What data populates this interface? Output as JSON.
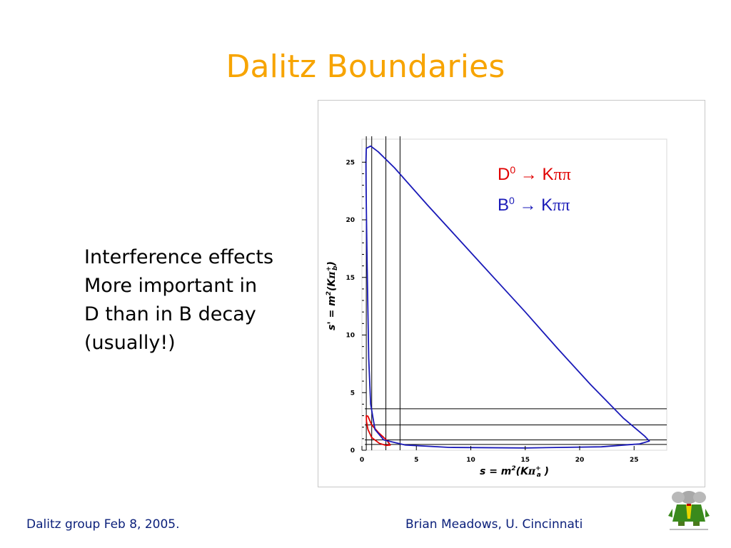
{
  "slide": {
    "title": "Dalitz Boundaries",
    "body_lines": [
      "Interference effects",
      "More important in",
      "D than in B decay",
      "(usually!)"
    ],
    "footer_left": "Dalitz group Feb 8, 2005.",
    "footer_right": "Brian Meadows, U. Cincinnati",
    "title_color": "#f7a400",
    "footer_color": "#0a1f7a"
  },
  "chart_data": {
    "type": "line",
    "xlabel": "s = m2(Kπa+)",
    "ylabel": "s' = m2(Kπb+)",
    "xlim": [
      0,
      28
    ],
    "ylim": [
      0,
      27
    ],
    "x_ticks": [
      "0",
      "5",
      "10",
      "15",
      "20",
      "25"
    ],
    "y_ticks": [
      "0",
      "5",
      "10",
      "15",
      "20",
      "25"
    ],
    "legend": [
      {
        "label": "D0 → Kππ",
        "color": "#e00000"
      },
      {
        "label": "B0 → Kππ",
        "color": "#1a1ab8"
      }
    ],
    "legend_placement": "top-right",
    "series": [
      {
        "name": "D0 → Kππ",
        "color": "#e00000",
        "closed": true,
        "points": [
          [
            0.4,
            3.0
          ],
          [
            0.55,
            2.95
          ],
          [
            0.9,
            2.2
          ],
          [
            1.5,
            1.55
          ],
          [
            2.3,
            0.85
          ],
          [
            2.6,
            0.45
          ],
          [
            2.2,
            0.42
          ],
          [
            1.6,
            0.6
          ],
          [
            0.9,
            1.1
          ],
          [
            0.55,
            1.8
          ],
          [
            0.42,
            2.5
          ]
        ]
      },
      {
        "name": "B0 → Kππ",
        "color": "#1a1ab8",
        "closed": true,
        "points": [
          [
            0.4,
            26.2
          ],
          [
            0.8,
            26.4
          ],
          [
            1.5,
            25.9
          ],
          [
            3.0,
            24.5
          ],
          [
            6.0,
            21.3
          ],
          [
            9.0,
            18.2
          ],
          [
            12.0,
            15.1
          ],
          [
            15.0,
            12.0
          ],
          [
            18.0,
            8.8
          ],
          [
            21.0,
            5.7
          ],
          [
            24.0,
            2.8
          ],
          [
            26.0,
            1.2
          ],
          [
            26.4,
            0.8
          ],
          [
            25.5,
            0.55
          ],
          [
            22.0,
            0.3
          ],
          [
            15.0,
            0.2
          ],
          [
            8.0,
            0.25
          ],
          [
            4.0,
            0.45
          ],
          [
            2.0,
            0.9
          ],
          [
            1.2,
            1.8
          ],
          [
            0.8,
            4.0
          ],
          [
            0.62,
            8.0
          ],
          [
            0.55,
            12.0
          ],
          [
            0.48,
            16.0
          ],
          [
            0.42,
            20.0
          ],
          [
            0.38,
            23.0
          ],
          [
            0.37,
            25.0
          ]
        ]
      }
    ],
    "vertical_lines": [
      0.4,
      0.9,
      2.2,
      3.5
    ],
    "horizontal_lines": [
      0.5,
      0.9,
      2.2,
      3.6
    ]
  }
}
